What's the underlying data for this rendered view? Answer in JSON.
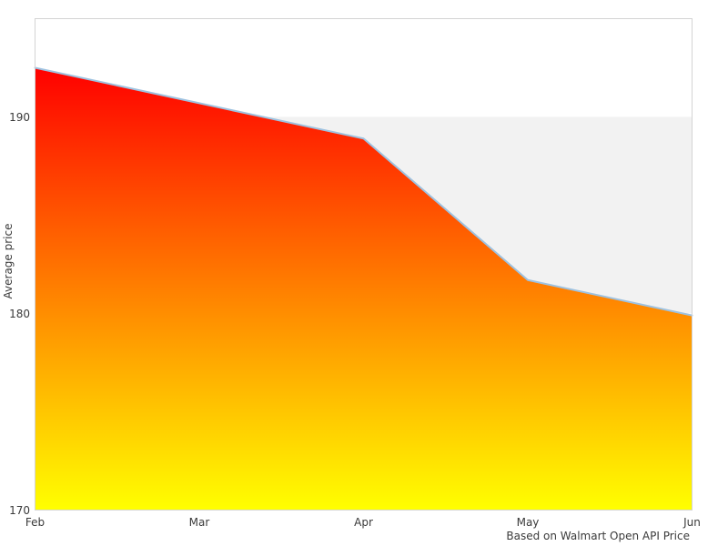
{
  "chart_data": {
    "type": "area",
    "title": "",
    "x": [
      "Feb",
      "Mar",
      "Apr",
      "May",
      "Jun"
    ],
    "series": [
      {
        "name": "Average price",
        "values": [
          192.5,
          190.7,
          188.9,
          181.7,
          179.9
        ]
      }
    ],
    "xlabel": "",
    "ylabel": "Average price",
    "yticks": [
      170,
      180,
      190
    ],
    "ylim": [
      170,
      195
    ],
    "caption": "Based on Walmart Open API Price",
    "legend": "none",
    "grid": "shaded horizontal band from 180 to 190",
    "colors": {
      "area_gradient_top": "#ff0000",
      "area_gradient_bottom": "#ffff00",
      "line": "#9ec2e0",
      "band": "#f2f2f2",
      "plot_border": "#d4d4d4",
      "text": "#3a3a3a",
      "background": "#ffffff"
    }
  }
}
